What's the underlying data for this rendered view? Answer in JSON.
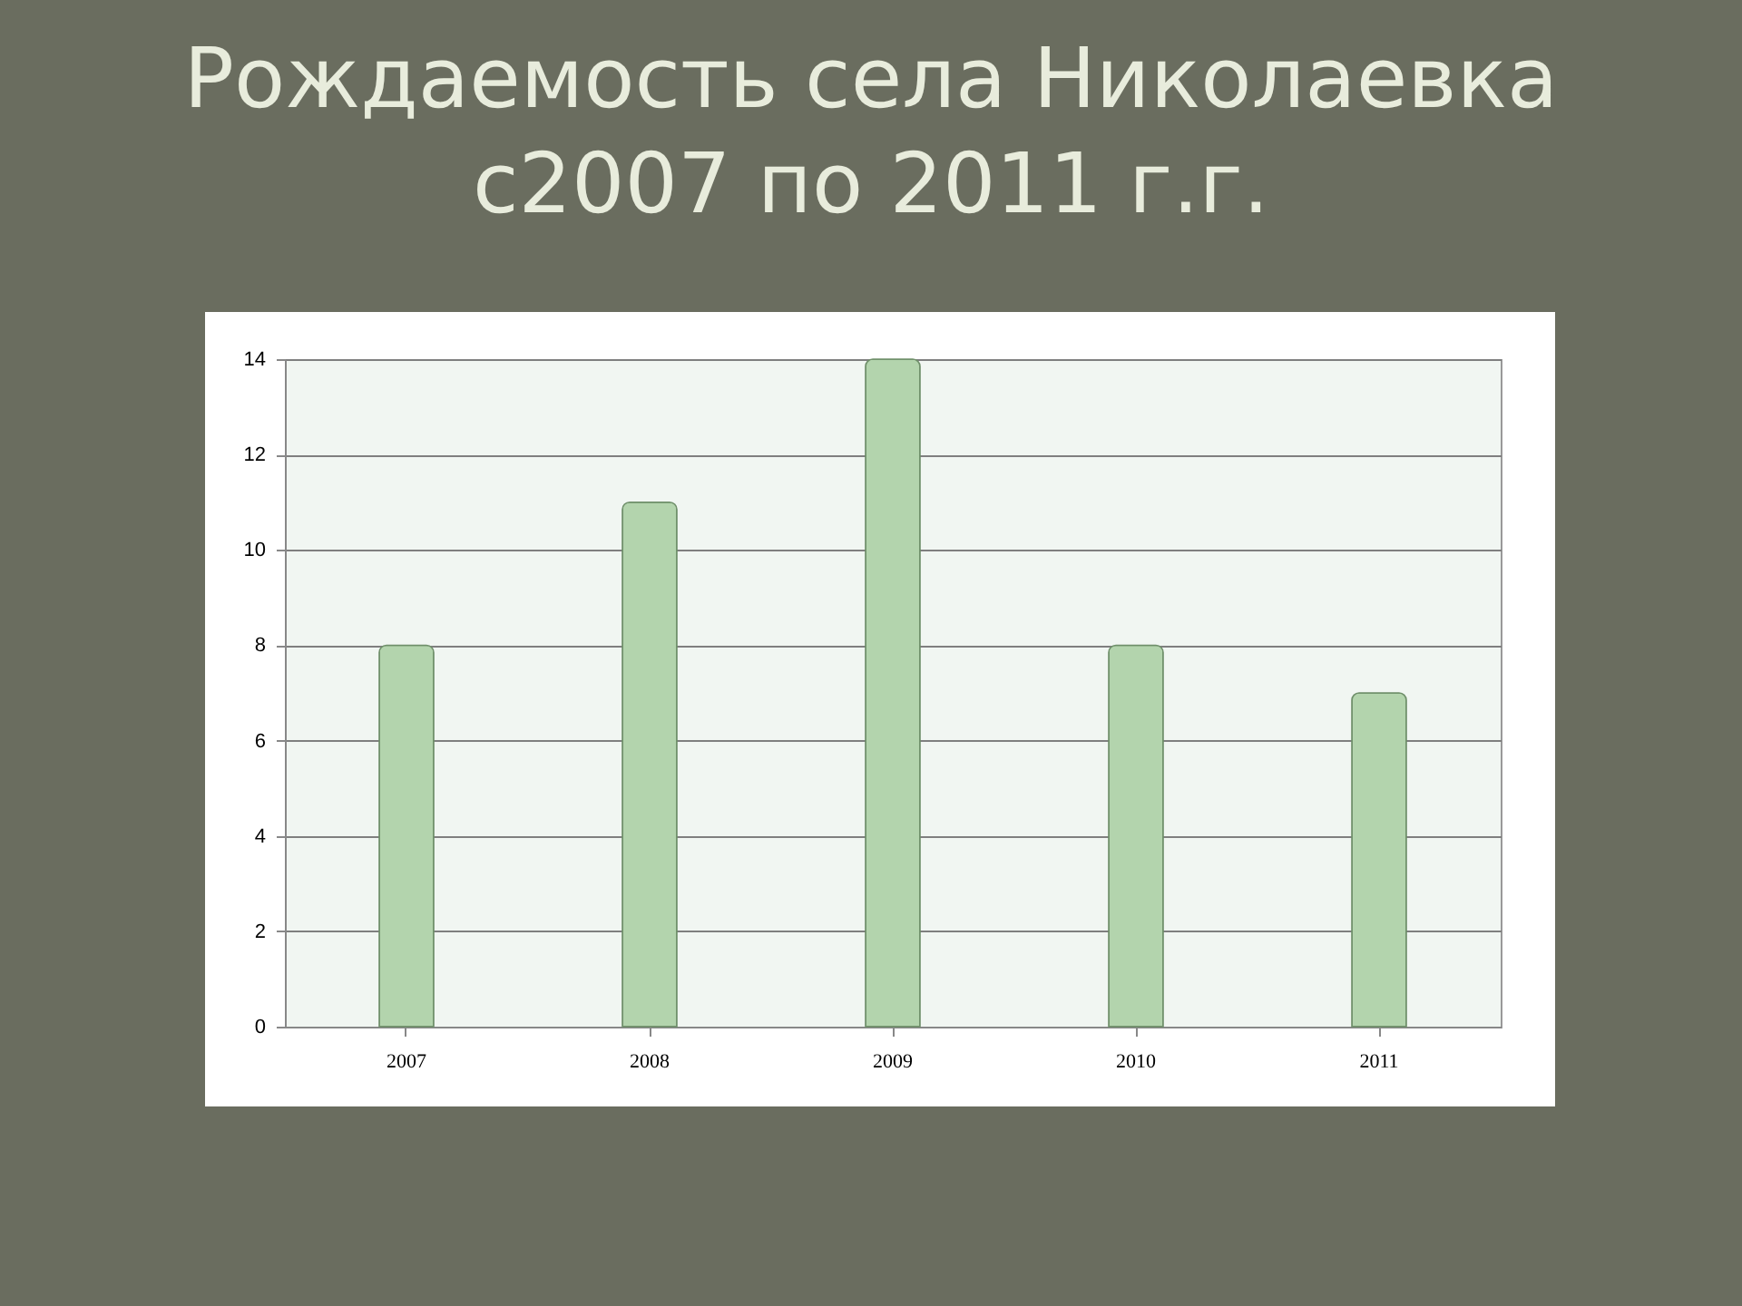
{
  "chart_data": {
    "type": "bar",
    "title": "Рождаемость села Николаевка\nс2007 по 2011 г.г.",
    "categories": [
      "2007",
      "2008",
      "2009",
      "2010",
      "2011"
    ],
    "values": [
      8,
      11,
      14,
      8,
      7
    ],
    "color": "#b3d4ad",
    "ylim": [
      0,
      14
    ],
    "yticks": [
      0,
      2,
      4,
      6,
      8,
      10,
      12,
      14
    ],
    "grid": "y"
  }
}
